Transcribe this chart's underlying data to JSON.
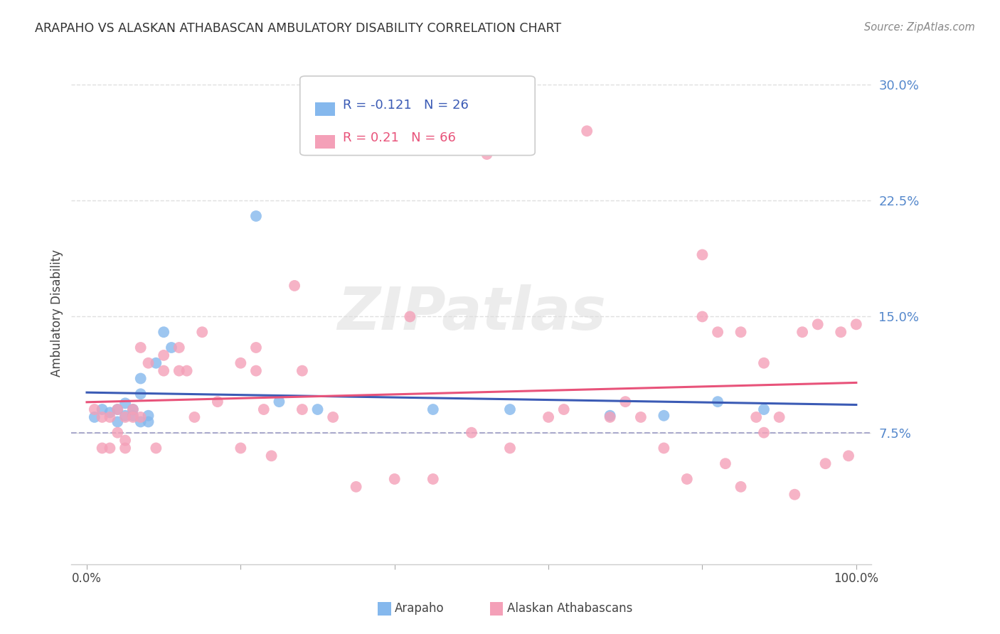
{
  "title": "ARAPAHO VS ALASKAN ATHABASCAN AMBULATORY DISABILITY CORRELATION CHART",
  "source": "Source: ZipAtlas.com",
  "ylabel": "Ambulatory Disability",
  "y_ticks": [
    0.075,
    0.15,
    0.225,
    0.3
  ],
  "y_tick_labels": [
    "7.5%",
    "15.0%",
    "22.5%",
    "30.0%"
  ],
  "xlim": [
    -2.0,
    102.0
  ],
  "ylim": [
    -0.01,
    0.315
  ],
  "arapaho_R": -0.121,
  "arapaho_N": 26,
  "alaskan_R": 0.21,
  "alaskan_N": 66,
  "arapaho_color": "#85B8ED",
  "alaskan_color": "#F4A0B8",
  "arapaho_line_color": "#3B5BB5",
  "alaskan_line_color": "#E8537A",
  "dashed_line_color": "#AAAACC",
  "grid_color": "#E0E0E0",
  "watermark_color": "#DDDDDD",
  "arapaho_scatter_x": [
    1,
    2,
    3,
    4,
    4,
    5,
    5,
    6,
    6,
    7,
    7,
    7,
    8,
    8,
    9,
    10,
    11,
    22,
    25,
    30,
    45,
    55,
    68,
    75,
    82,
    88
  ],
  "arapaho_scatter_y": [
    0.085,
    0.09,
    0.088,
    0.09,
    0.082,
    0.094,
    0.086,
    0.09,
    0.086,
    0.082,
    0.1,
    0.11,
    0.086,
    0.082,
    0.12,
    0.14,
    0.13,
    0.215,
    0.095,
    0.09,
    0.09,
    0.09,
    0.086,
    0.086,
    0.095,
    0.09
  ],
  "alaskan_scatter_x": [
    1,
    2,
    2,
    3,
    3,
    4,
    4,
    5,
    5,
    5,
    6,
    6,
    7,
    7,
    8,
    9,
    10,
    10,
    12,
    12,
    13,
    14,
    15,
    17,
    20,
    20,
    22,
    22,
    23,
    24,
    27,
    28,
    28,
    32,
    35,
    40,
    42,
    45,
    50,
    52,
    55,
    60,
    62,
    65,
    68,
    70,
    72,
    75,
    78,
    80,
    80,
    82,
    83,
    85,
    85,
    87,
    88,
    88,
    90,
    92,
    93,
    95,
    96,
    98,
    99,
    100
  ],
  "alaskan_scatter_y": [
    0.09,
    0.085,
    0.065,
    0.085,
    0.065,
    0.09,
    0.075,
    0.085,
    0.07,
    0.065,
    0.085,
    0.09,
    0.13,
    0.085,
    0.12,
    0.065,
    0.125,
    0.115,
    0.115,
    0.13,
    0.115,
    0.085,
    0.14,
    0.095,
    0.065,
    0.12,
    0.115,
    0.13,
    0.09,
    0.06,
    0.17,
    0.115,
    0.09,
    0.085,
    0.04,
    0.045,
    0.15,
    0.045,
    0.075,
    0.255,
    0.065,
    0.085,
    0.09,
    0.27,
    0.085,
    0.095,
    0.085,
    0.065,
    0.045,
    0.19,
    0.15,
    0.14,
    0.055,
    0.14,
    0.04,
    0.085,
    0.075,
    0.12,
    0.085,
    0.035,
    0.14,
    0.145,
    0.055,
    0.14,
    0.06,
    0.145
  ]
}
